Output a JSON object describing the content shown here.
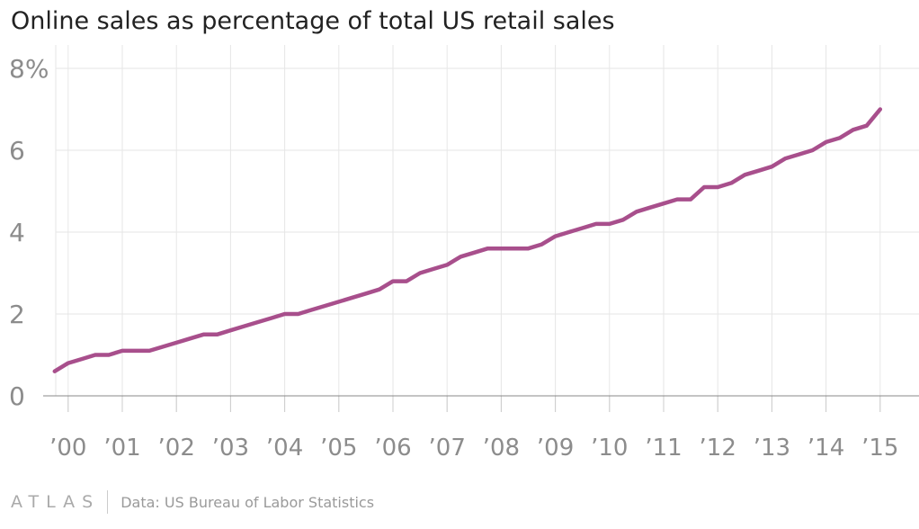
{
  "chart_data": {
    "type": "line",
    "title": "Online sales as percentage of total US retail sales",
    "xlabel": "",
    "ylabel": "",
    "ylim": [
      0,
      8
    ],
    "xlim": [
      1999.6,
      2015.6
    ],
    "grid": true,
    "y_ticks": [
      0,
      2,
      4,
      6,
      8
    ],
    "y_tick_labels": [
      "0",
      "2",
      "4",
      "6",
      "8%"
    ],
    "x_ticks": [
      2000,
      2001,
      2002,
      2003,
      2004,
      2005,
      2006,
      2007,
      2008,
      2009,
      2010,
      2011,
      2012,
      2013,
      2014,
      2015
    ],
    "x_tick_labels": [
      "’00",
      "’01",
      "’02",
      "’03",
      "’04",
      "’05",
      "’06",
      "’07",
      "’08",
      "’09",
      "’10",
      "’11",
      "’12",
      "’13",
      "’14",
      "’15"
    ],
    "series": [
      {
        "color": "#a84f8c",
        "x": [
          1999.75,
          2000.0,
          2000.25,
          2000.5,
          2000.75,
          2001.0,
          2001.25,
          2001.5,
          2001.75,
          2002.0,
          2002.25,
          2002.5,
          2002.75,
          2003.0,
          2003.25,
          2003.5,
          2003.75,
          2004.0,
          2004.25,
          2004.5,
          2004.75,
          2005.0,
          2005.25,
          2005.5,
          2005.75,
          2006.0,
          2006.25,
          2006.5,
          2006.75,
          2007.0,
          2007.25,
          2007.5,
          2007.75,
          2008.0,
          2008.25,
          2008.5,
          2008.75,
          2009.0,
          2009.25,
          2009.5,
          2009.75,
          2010.0,
          2010.25,
          2010.5,
          2010.75,
          2011.0,
          2011.25,
          2011.5,
          2011.75,
          2012.0,
          2012.25,
          2012.5,
          2012.75,
          2013.0,
          2013.25,
          2013.5,
          2013.75,
          2014.0,
          2014.25,
          2014.5,
          2014.75,
          2015.0
        ],
        "y": [
          0.6,
          0.8,
          0.9,
          1.0,
          1.0,
          1.1,
          1.1,
          1.1,
          1.2,
          1.3,
          1.4,
          1.5,
          1.5,
          1.6,
          1.7,
          1.8,
          1.9,
          2.0,
          2.0,
          2.1,
          2.2,
          2.3,
          2.4,
          2.5,
          2.6,
          2.8,
          2.8,
          3.0,
          3.1,
          3.2,
          3.4,
          3.5,
          3.6,
          3.6,
          3.6,
          3.6,
          3.7,
          3.9,
          4.0,
          4.1,
          4.2,
          4.2,
          4.3,
          4.5,
          4.6,
          4.7,
          4.8,
          4.8,
          5.1,
          5.1,
          5.2,
          5.4,
          5.5,
          5.6,
          5.8,
          5.9,
          6.0,
          6.2,
          6.3,
          6.5,
          6.6,
          7.0
        ]
      }
    ]
  },
  "footer": {
    "logo": "ATLAS",
    "source": "Data: US Bureau of Labor Statistics"
  }
}
